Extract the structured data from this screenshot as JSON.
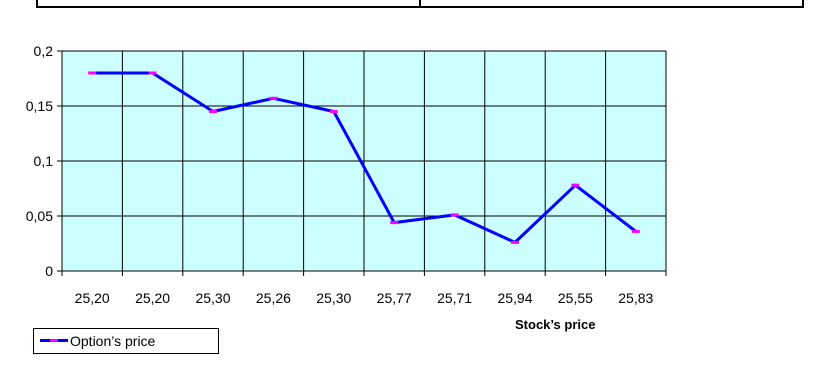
{
  "chart_data": {
    "type": "line",
    "title": "",
    "xlabel": "Stock’s price",
    "ylabel": "",
    "categories": [
      "25,20",
      "25,20",
      "25,30",
      "25,26",
      "25,30",
      "25,77",
      "25,71",
      "25,94",
      "25,55",
      "25,83"
    ],
    "series": [
      {
        "name": "Option’s price",
        "values": [
          0.18,
          0.18,
          0.145,
          0.157,
          0.145,
          0.044,
          0.051,
          0.026,
          0.078,
          0.036
        ],
        "line_color": "#0000ff",
        "marker_color": "#ff00ff"
      }
    ],
    "yticks": [
      "0",
      "0,05",
      "0,1",
      "0,15",
      "0,2"
    ],
    "ylim": [
      0,
      0.2
    ],
    "grid": true,
    "plot_background": "#ccffff",
    "legend_position": "bottom-left"
  }
}
